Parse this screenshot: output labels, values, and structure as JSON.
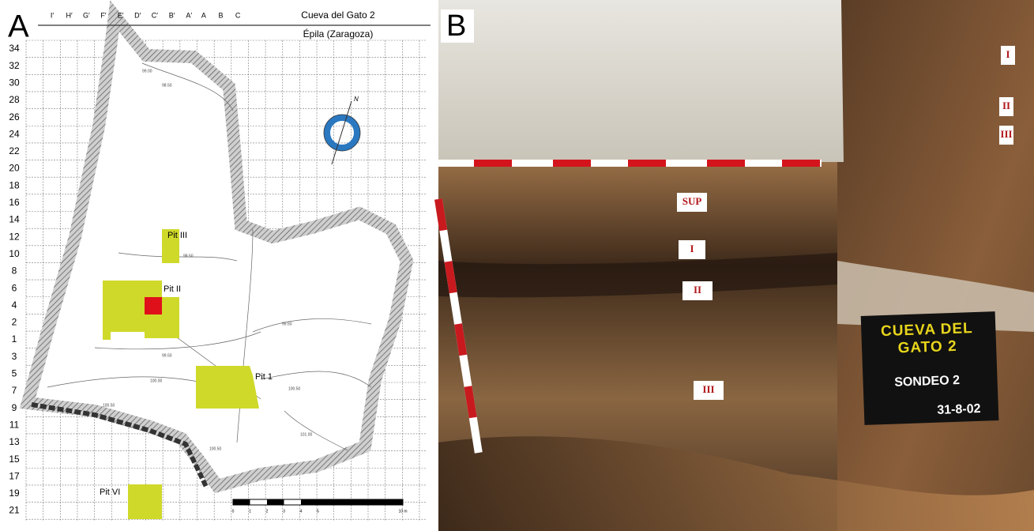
{
  "panel_a": {
    "label": "A",
    "title": "Cueva del Gato 2",
    "subtitle": "Épila (Zaragoza)",
    "columns": [
      "I′",
      "H′",
      "G′",
      "F′",
      "E′",
      "D′",
      "C′",
      "B′",
      "A′",
      "A",
      "B",
      "C"
    ],
    "rows": [
      "34",
      "32",
      "30",
      "28",
      "26",
      "24",
      "22",
      "20",
      "18",
      "16",
      "14",
      "12",
      "10",
      "8",
      "6",
      "4",
      "2",
      "1",
      "3",
      "5",
      "7",
      "9",
      "11",
      "13",
      "15",
      "17",
      "19",
      "21"
    ],
    "pits": [
      "Pit III",
      "Pit II",
      "Pit 1",
      "Pit VI"
    ],
    "contours": [
      "99.00",
      "98.50",
      "98.50",
      "99.50",
      "99.50",
      "100.00",
      "100.50",
      "100.50",
      "101.00",
      "100.50"
    ],
    "north": "N",
    "scale": [
      "0",
      "1",
      "2",
      "3",
      "4",
      "5",
      "10 m"
    ]
  },
  "panel_b": {
    "label": "B",
    "wall_tags": [
      "SUP",
      "I",
      "II",
      "III"
    ],
    "side_tags": [
      "I",
      "II",
      "III"
    ],
    "sign": [
      "CUEVA DEL",
      "GATO 2",
      "SONDEO 2",
      "31-8-02"
    ]
  }
}
